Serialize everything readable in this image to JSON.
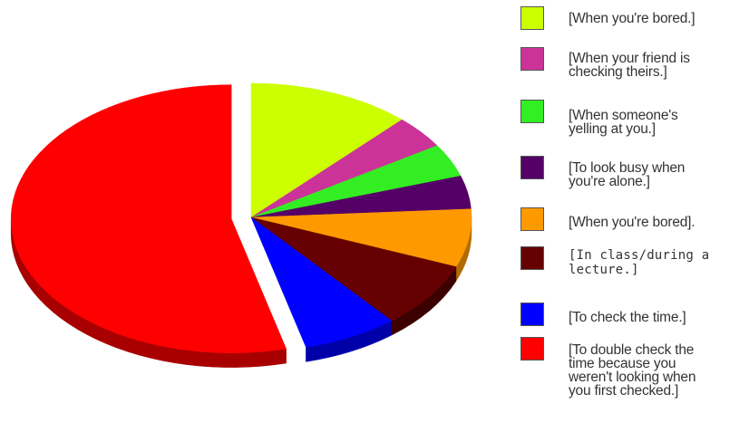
{
  "chart_data": {
    "type": "pie",
    "title": "",
    "legend_position": "right",
    "exploded_slice": "[To double check the time because you weren't looking when you first checked.]",
    "categories": [
      "[When you're bored.]",
      "[When your friend is checking theirs.]",
      "[When someone's yelling at you.]",
      "[To look busy when you're alone.]",
      "[When you're bored].",
      "[In class/during a lecture.]",
      "[To check the time.]",
      "[To double check the time because you weren't looking when you first checked.]"
    ],
    "values": [
      12,
      4,
      4,
      4,
      7,
      8,
      7,
      54
    ],
    "colors": [
      "#ccff00",
      "#cc3399",
      "#33ee22",
      "#550066",
      "#ff9900",
      "#660000",
      "#0000ff",
      "#ff0000"
    ],
    "shade_colors": [
      "#8a9f00",
      "#8a1d66",
      "#1f9a14",
      "#330040",
      "#b36b00",
      "#3d0000",
      "#0000a8",
      "#a80000"
    ]
  },
  "legend": {
    "items": [
      {
        "label": "[When you're bored.]",
        "color": "#ccff00"
      },
      {
        "label": "[When your friend is\nchecking theirs.]",
        "color": "#cc3399"
      },
      {
        "label": "[When someone's\nyelling at you.]",
        "color": "#33ee22"
      },
      {
        "label": "[To look busy when\nyou're alone.]",
        "color": "#550066"
      },
      {
        "label": "[When you're bored].",
        "color": "#ff9900"
      },
      {
        "label": "[In class/during a\nlecture.]",
        "color": "#660000"
      },
      {
        "label": "[To check the time.]",
        "color": "#0000ff"
      },
      {
        "label": "[To double check the\ntime because you\nweren't looking when\nyou first checked.]",
        "color": "#ff0000"
      }
    ]
  }
}
